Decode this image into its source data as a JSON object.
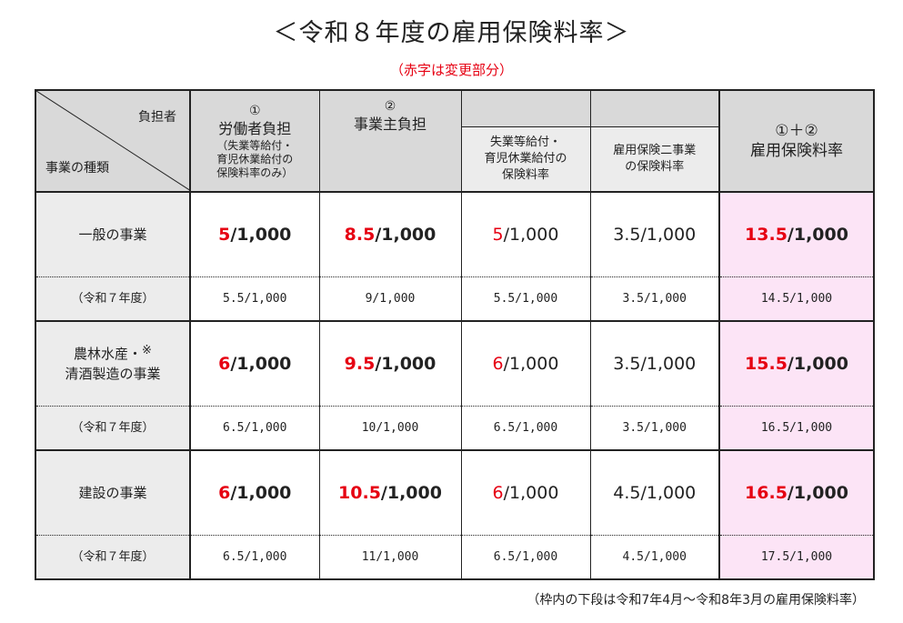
{
  "title": "＜令和８年度の雇用保険料率＞",
  "subtitle": "（赤字は変更部分）",
  "header": {
    "corner_top": "負担者",
    "corner_bottom": "事業の種類",
    "col1_num": "①",
    "col1_title": "労働者負担",
    "col1_note_1": "（失業等給付・",
    "col1_note_2": "育児休業給付の",
    "col1_note_3": "保険料率のみ）",
    "col2_num": "②",
    "col2_title": "事業主負担",
    "col3_line1": "失業等給付・",
    "col3_line2": "育児休業給付の",
    "col3_line3": "保険料率",
    "col4_line1": "雇用保険二事業",
    "col4_line2": "の保険料率",
    "col5_num": "①＋②",
    "col5_title": "雇用保険料率"
  },
  "rows": [
    {
      "label": "一般の事業",
      "worker_red": "5",
      "worker_rest": "/1,000",
      "employer_red": "8.5",
      "employer_rest": "/1,000",
      "unemp_red": "5",
      "unemp_rest": "/1,000",
      "two_proj": "3.5/1,000",
      "total_red": "13.5",
      "total_rest": "/1,000",
      "prev_label": "（令和７年度）",
      "prev_worker": "5.5/1,000",
      "prev_employer": "9/1,000",
      "prev_unemp": "5.5/1,000",
      "prev_two_proj": "3.5/1,000",
      "prev_total": "14.5/1,000"
    },
    {
      "label_1": "農林水産・",
      "label_mark": "※",
      "label_2": "清酒製造の事業",
      "worker_red": "6",
      "worker_rest": "/1,000",
      "employer_red": "9.5",
      "employer_rest": "/1,000",
      "unemp_red": "6",
      "unemp_rest": "/1,000",
      "two_proj": "3.5/1,000",
      "total_red": "15.5",
      "total_rest": "/1,000",
      "prev_label": "（令和７年度）",
      "prev_worker": "6.5/1,000",
      "prev_employer": "10/1,000",
      "prev_unemp": "6.5/1,000",
      "prev_two_proj": "3.5/1,000",
      "prev_total": "16.5/1,000"
    },
    {
      "label": "建設の事業",
      "worker_red": "6",
      "worker_rest": "/1,000",
      "employer_red": "10.5",
      "employer_rest": "/1,000",
      "unemp_red": "6",
      "unemp_rest": "/1,000",
      "two_proj": "4.5/1,000",
      "total_red": "16.5",
      "total_rest": "/1,000",
      "prev_label": "（令和７年度）",
      "prev_worker": "6.5/1,000",
      "prev_employer": "11/1,000",
      "prev_unemp": "6.5/1,000",
      "prev_two_proj": "4.5/1,000",
      "prev_total": "17.5/1,000"
    }
  ],
  "footnote": "（枠内の下段は令和7年4月～令和8年3月の雇用保険料率）",
  "colors": {
    "accent_red": "#e60012",
    "total_column_bg": "#fce4f6",
    "header_bg": "#d9d9d9"
  }
}
